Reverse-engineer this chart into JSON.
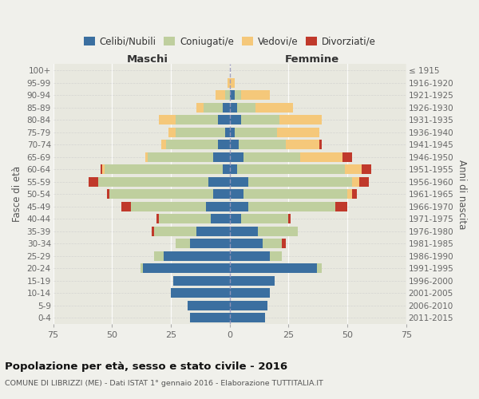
{
  "age_groups": [
    "100+",
    "95-99",
    "90-94",
    "85-89",
    "80-84",
    "75-79",
    "70-74",
    "65-69",
    "60-64",
    "55-59",
    "50-54",
    "45-49",
    "40-44",
    "35-39",
    "30-34",
    "25-29",
    "20-24",
    "15-19",
    "10-14",
    "5-9",
    "0-4"
  ],
  "birth_years": [
    "≤ 1915",
    "1916-1920",
    "1921-1925",
    "1926-1930",
    "1931-1935",
    "1936-1940",
    "1941-1945",
    "1946-1950",
    "1951-1955",
    "1956-1960",
    "1961-1965",
    "1966-1970",
    "1971-1975",
    "1976-1980",
    "1981-1985",
    "1986-1990",
    "1991-1995",
    "1996-2000",
    "2001-2005",
    "2006-2010",
    "2011-2015"
  ],
  "maschi": {
    "celibi": [
      0,
      0,
      0,
      3,
      5,
      2,
      5,
      7,
      3,
      9,
      7,
      10,
      8,
      14,
      17,
      28,
      37,
      24,
      25,
      18,
      17
    ],
    "coniugati": [
      0,
      0,
      2,
      8,
      18,
      21,
      22,
      28,
      50,
      47,
      44,
      32,
      22,
      18,
      6,
      4,
      1,
      0,
      0,
      0,
      0
    ],
    "vedovi": [
      0,
      1,
      4,
      3,
      7,
      3,
      2,
      1,
      1,
      0,
      0,
      0,
      0,
      0,
      0,
      0,
      0,
      0,
      0,
      0,
      0
    ],
    "divorziati": [
      0,
      0,
      0,
      0,
      0,
      0,
      0,
      0,
      1,
      4,
      1,
      4,
      1,
      1,
      0,
      0,
      0,
      0,
      0,
      0,
      0
    ]
  },
  "femmine": {
    "nubili": [
      0,
      0,
      2,
      3,
      5,
      2,
      4,
      6,
      3,
      8,
      6,
      8,
      5,
      12,
      14,
      17,
      37,
      19,
      17,
      16,
      15
    ],
    "coniugate": [
      0,
      0,
      3,
      8,
      16,
      18,
      20,
      24,
      46,
      44,
      44,
      37,
      20,
      17,
      8,
      5,
      2,
      0,
      0,
      0,
      0
    ],
    "vedove": [
      0,
      2,
      12,
      16,
      18,
      18,
      14,
      18,
      7,
      3,
      2,
      0,
      0,
      0,
      0,
      0,
      0,
      0,
      0,
      0,
      0
    ],
    "divorziate": [
      0,
      0,
      0,
      0,
      0,
      0,
      1,
      4,
      4,
      4,
      2,
      5,
      1,
      0,
      2,
      0,
      0,
      0,
      0,
      0,
      0
    ]
  },
  "colors": {
    "celibi": "#3b6fa0",
    "coniugati": "#bfcf9e",
    "vedovi": "#f5c87a",
    "divorziati": "#c0392b"
  },
  "xlim": 75,
  "title": "Popolazione per età, sesso e stato civile - 2016",
  "subtitle": "COMUNE DI LIBRIZZI (ME) - Dati ISTAT 1° gennaio 2016 - Elaborazione TUTTITALIA.IT",
  "ylabel_left": "Fasce di età",
  "ylabel_right": "Anni di nascita",
  "label_maschi": "Maschi",
  "label_femmine": "Femmine",
  "bg_color": "#f0f0eb",
  "plot_bg": "#e8e8df",
  "legend": [
    "Celibi/Nubili",
    "Coniugati/e",
    "Vedovi/e",
    "Divorziati/e"
  ]
}
